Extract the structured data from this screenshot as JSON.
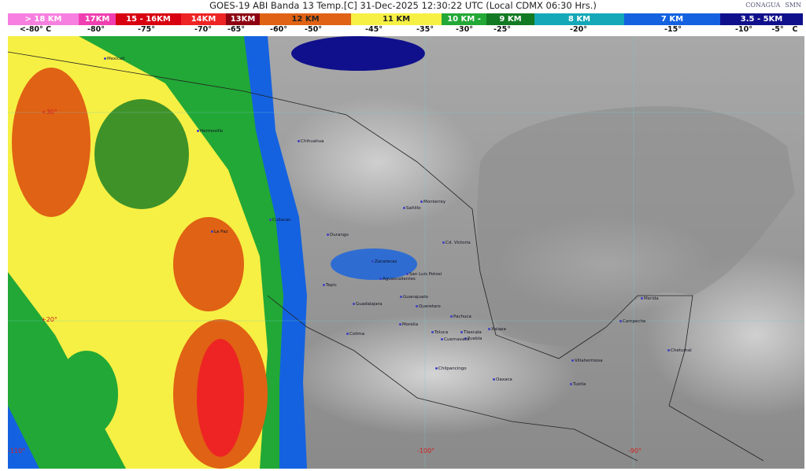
{
  "header": {
    "title": "GOES-19 ABI Banda 13 Temp.[C] 31-Dec-2025 12:30:22 UTC (Local CDMX  06:30 Hrs.)",
    "logos": [
      "CONAGUA",
      "SMN"
    ]
  },
  "legend": {
    "heights": [
      {
        "label": "> 18 KM",
        "color": "#f77fe0"
      },
      {
        "label": "17KM",
        "color": "#f03fb0"
      },
      {
        "label": "15 - 16KM",
        "color": "#d80010"
      },
      {
        "label": "14KM",
        "color": "#ee2424"
      },
      {
        "label": "13KM",
        "color": "#8c0010"
      },
      {
        "label": "12 KM",
        "color": "#e06214"
      },
      {
        "label": "11 KM",
        "color": "#f6f044"
      },
      {
        "label": "10 KM -",
        "color": "#22a836"
      },
      {
        "label": "9 KM",
        "color": "#127a22"
      },
      {
        "label": "8 KM",
        "color": "#14a8b8"
      },
      {
        "label": "7 KM",
        "color": "#1462e0"
      },
      {
        "label": "3.5 - 5KM",
        "color": "#10108c"
      }
    ],
    "temperatures": [
      "<-80° C",
      "-80°",
      "-75°",
      "-70°",
      "-65°",
      "-60°",
      "-50°",
      "-45°",
      "-35°",
      "-30°",
      "-25°",
      "-20°",
      "-15°",
      "-10°",
      "-5°",
      "C"
    ]
  },
  "map": {
    "grid_labels": {
      "lat30": "+30°",
      "lat20": "+20°",
      "lon110": "-110°",
      "lon100": "-100°",
      "lon90": "-90°"
    },
    "cities": [
      "Mexicali",
      "Hermosillo",
      "Chihuahua",
      "Culiacan",
      "La Paz",
      "Durango",
      "Saltillo",
      "Monterrey",
      "Cd. Victoria",
      "Zacatecas",
      "San Luis Potosi",
      "Aguascalientes",
      "Tepic",
      "Guadalajara",
      "Guanajuato",
      "Queretaro",
      "Pachuca",
      "Morelia",
      "Colima",
      "Toluca",
      "Tlaxcala",
      "Puebla",
      "Cuernavaca",
      "Xalapa",
      "Chilpancingo",
      "Oaxaca",
      "Villahermosa",
      "Tuxtla",
      "Campeche",
      "Merida",
      "Chetumal"
    ]
  }
}
